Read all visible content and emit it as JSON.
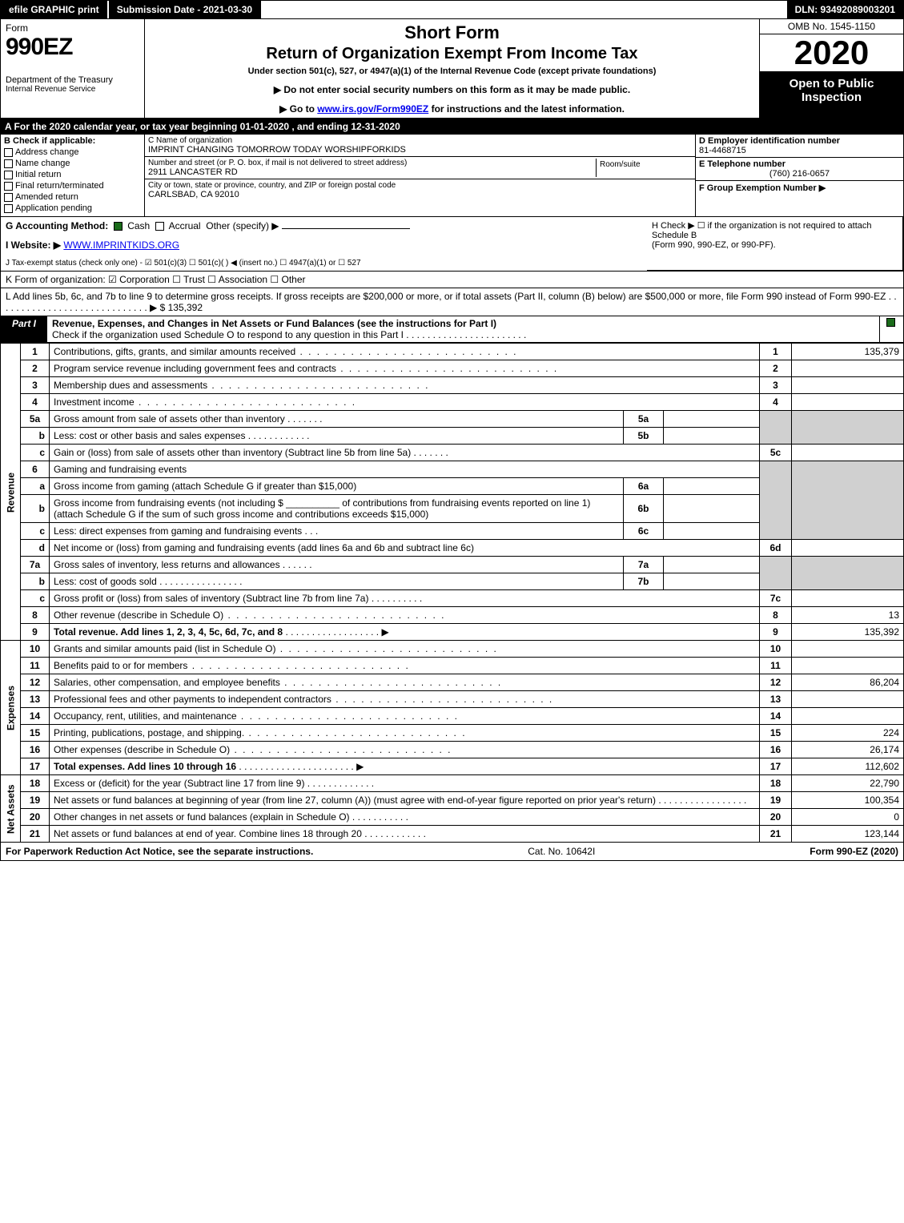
{
  "top": {
    "efile": "efile GRAPHIC print",
    "submit": "Submission Date - 2021-03-30",
    "dln": "DLN: 93492089003201"
  },
  "header": {
    "form_label": "Form",
    "form_no": "990EZ",
    "dept": "Department of the Treasury",
    "irs": "Internal Revenue Service",
    "short": "Short Form",
    "title": "Return of Organization Exempt From Income Tax",
    "sub1": "Under section 501(c), 527, or 4947(a)(1) of the Internal Revenue Code (except private foundations)",
    "sub2": "▶ Do not enter social security numbers on this form as it may be made public.",
    "sub3_pre": "▶ Go to ",
    "sub3_link": "www.irs.gov/Form990EZ",
    "sub3_post": " for instructions and the latest information.",
    "omb": "OMB No. 1545-1150",
    "year": "2020",
    "open": "Open to Public Inspection"
  },
  "strip_a": "A For the 2020 calendar year, or tax year beginning 01-01-2020 , and ending 12-31-2020",
  "box_b": {
    "title": "B Check if applicable:",
    "items": [
      "Address change",
      "Name change",
      "Initial return",
      "Final return/terminated",
      "Amended return",
      "Application pending"
    ]
  },
  "box_c": {
    "label": "C Name of organization",
    "name": "IMPRINT CHANGING TOMORROW TODAY WORSHIPFORKIDS",
    "street_label": "Number and street (or P. O. box, if mail is not delivered to street address)",
    "street": "2911 LANCASTER RD",
    "room_label": "Room/suite",
    "city_label": "City or town, state or province, country, and ZIP or foreign postal code",
    "city": "CARLSBAD, CA  92010"
  },
  "box_d": {
    "label": "D Employer identification number",
    "val": "81-4468715"
  },
  "box_e": {
    "label": "E Telephone number",
    "val": "(760) 216-0657"
  },
  "box_f": {
    "label": "F Group Exemption Number  ▶"
  },
  "g": {
    "label": "G Accounting Method:",
    "cash": "Cash",
    "accrual": "Accrual",
    "other": "Other (specify) ▶"
  },
  "h": {
    "text1": "H  Check ▶  ☐  if the organization is not required to attach Schedule B",
    "text2": "(Form 990, 990-EZ, or 990-PF)."
  },
  "i": {
    "label": "I Website: ▶",
    "val": "WWW.IMPRINTKIDS.ORG"
  },
  "j": "J Tax-exempt status (check only one) - ☑ 501(c)(3) ☐ 501(c)(  ) ◀ (insert no.) ☐ 4947(a)(1) or ☐ 527",
  "k": "K Form of organization:  ☑ Corporation  ☐ Trust  ☐ Association  ☐ Other",
  "l": {
    "text": "L Add lines 5b, 6c, and 7b to line 9 to determine gross receipts. If gross receipts are $200,000 or more, or if total assets (Part II, column (B) below) are $500,000 or more, file Form 990 instead of Form 990-EZ . . . . . . . . . . . . . . . . . . . . . . . . . . . . . ▶ $",
    "val": "135,392"
  },
  "part1": {
    "tag": "Part I",
    "title": "Revenue, Expenses, and Changes in Net Assets or Fund Balances (see the instructions for Part I)",
    "check_line": "Check if the organization used Schedule O to respond to any question in this Part I . . . . . . . . . . . . . . . . . . . . . . ."
  },
  "sides": {
    "rev": "Revenue",
    "exp": "Expenses",
    "na": "Net Assets"
  },
  "lines": {
    "1": {
      "d": "Contributions, gifts, grants, and similar amounts received",
      "a": "135,379"
    },
    "2": {
      "d": "Program service revenue including government fees and contracts",
      "a": ""
    },
    "3": {
      "d": "Membership dues and assessments",
      "a": ""
    },
    "4": {
      "d": "Investment income",
      "a": ""
    },
    "5a": {
      "d": "Gross amount from sale of assets other than inventory"
    },
    "5b": {
      "d": "Less: cost or other basis and sales expenses"
    },
    "5c": {
      "d": "Gain or (loss) from sale of assets other than inventory (Subtract line 5b from line 5a)",
      "a": ""
    },
    "6": {
      "d": "Gaming and fundraising events"
    },
    "6a": {
      "d": "Gross income from gaming (attach Schedule G if greater than $15,000)"
    },
    "6b": {
      "d": "Gross income from fundraising events (not including $ __________ of contributions from fundraising events reported on line 1) (attach Schedule G if the sum of such gross income and contributions exceeds $15,000)"
    },
    "6c": {
      "d": "Less: direct expenses from gaming and fundraising events"
    },
    "6d": {
      "d": "Net income or (loss) from gaming and fundraising events (add lines 6a and 6b and subtract line 6c)",
      "a": ""
    },
    "7a": {
      "d": "Gross sales of inventory, less returns and allowances"
    },
    "7b": {
      "d": "Less: cost of goods sold"
    },
    "7c": {
      "d": "Gross profit or (loss) from sales of inventory (Subtract line 7b from line 7a)",
      "a": ""
    },
    "8": {
      "d": "Other revenue (describe in Schedule O)",
      "a": "13"
    },
    "9": {
      "d": "Total revenue. Add lines 1, 2, 3, 4, 5c, 6d, 7c, and 8",
      "a": "135,392"
    },
    "10": {
      "d": "Grants and similar amounts paid (list in Schedule O)",
      "a": ""
    },
    "11": {
      "d": "Benefits paid to or for members",
      "a": ""
    },
    "12": {
      "d": "Salaries, other compensation, and employee benefits",
      "a": "86,204"
    },
    "13": {
      "d": "Professional fees and other payments to independent contractors",
      "a": ""
    },
    "14": {
      "d": "Occupancy, rent, utilities, and maintenance",
      "a": ""
    },
    "15": {
      "d": "Printing, publications, postage, and shipping.",
      "a": "224"
    },
    "16": {
      "d": "Other expenses (describe in Schedule O)",
      "a": "26,174"
    },
    "17": {
      "d": "Total expenses. Add lines 10 through 16",
      "a": "112,602"
    },
    "18": {
      "d": "Excess or (deficit) for the year (Subtract line 17 from line 9)",
      "a": "22,790"
    },
    "19": {
      "d": "Net assets or fund balances at beginning of year (from line 27, column (A)) (must agree with end-of-year figure reported on prior year's return)",
      "a": "100,354"
    },
    "20": {
      "d": "Other changes in net assets or fund balances (explain in Schedule O)",
      "a": "0"
    },
    "21": {
      "d": "Net assets or fund balances at end of year. Combine lines 18 through 20",
      "a": "123,144"
    }
  },
  "footer": {
    "left": "For Paperwork Reduction Act Notice, see the separate instructions.",
    "mid": "Cat. No. 10642I",
    "right": "Form 990-EZ (2020)"
  },
  "colors": {
    "black": "#000000",
    "white": "#ffffff",
    "grey": "#d0d0d0",
    "link": "#0000ee",
    "check_green": "#1a6b1a"
  }
}
